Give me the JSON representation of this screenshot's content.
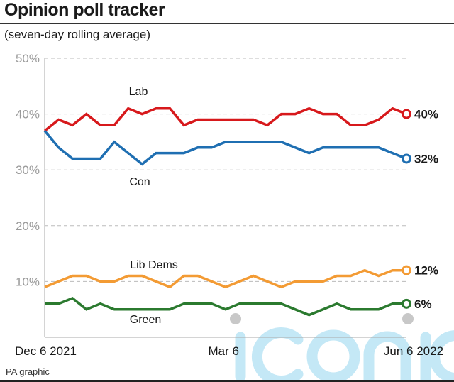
{
  "header": {
    "title": "Opinion poll tracker",
    "subtitle": "(seven-day rolling average)"
  },
  "footer": {
    "source": "PA graphic"
  },
  "watermark": "iconic",
  "chart_data": {
    "type": "line",
    "title": "Opinion poll tracker",
    "subtitle": "(seven-day rolling average)",
    "xlabel": "",
    "ylabel": "",
    "ylim": [
      0,
      50
    ],
    "yticks": [
      "50%",
      "40%",
      "30%",
      "20%",
      "10%"
    ],
    "ytick_values": [
      50,
      40,
      30,
      20,
      10
    ],
    "xticks": [
      "Dec 6 2021",
      "Mar 6",
      "Jun 6 2022"
    ],
    "xtick_dates": [
      "2021-12-06",
      "2022-03-06",
      "2022-06-06"
    ],
    "xlim": [
      "2021-12-06",
      "2022-06-06"
    ],
    "grid": "horizontal dashed",
    "x": [
      "2021-12-06",
      "2021-12-13",
      "2021-12-20",
      "2021-12-27",
      "2022-01-03",
      "2022-01-10",
      "2022-01-17",
      "2022-01-24",
      "2022-01-31",
      "2022-02-07",
      "2022-02-14",
      "2022-02-21",
      "2022-02-28",
      "2022-03-07",
      "2022-03-14",
      "2022-03-21",
      "2022-03-28",
      "2022-04-04",
      "2022-04-11",
      "2022-04-18",
      "2022-04-25",
      "2022-05-02",
      "2022-05-09",
      "2022-05-16",
      "2022-05-23",
      "2022-05-30",
      "2022-06-06"
    ],
    "series": [
      {
        "name": "Lab",
        "color": "#d7191c",
        "end_label": "40%",
        "values": [
          37,
          39,
          38,
          40,
          38,
          38,
          41,
          40,
          41,
          41,
          38,
          39,
          39,
          39,
          39,
          39,
          38,
          40,
          40,
          41,
          40,
          40,
          38,
          38,
          39,
          41,
          40
        ]
      },
      {
        "name": "Con",
        "color": "#1f6fb2",
        "end_label": "32%",
        "values": [
          37,
          34,
          32,
          32,
          32,
          35,
          33,
          31,
          33,
          33,
          33,
          34,
          34,
          35,
          35,
          35,
          35,
          35,
          34,
          33,
          34,
          34,
          34,
          34,
          34,
          33,
          32
        ]
      },
      {
        "name": "Lib Dems",
        "color": "#f39b34",
        "end_label": "12%",
        "values": [
          9,
          10,
          11,
          11,
          10,
          10,
          11,
          11,
          10,
          9,
          11,
          11,
          10,
          9,
          10,
          11,
          10,
          9,
          10,
          10,
          10,
          11,
          11,
          12,
          11,
          12,
          12
        ]
      },
      {
        "name": "Green",
        "color": "#2b7a2f",
        "end_label": "6%",
        "values": [
          6,
          6,
          7,
          5,
          6,
          5,
          5,
          5,
          5,
          5,
          6,
          6,
          6,
          5,
          6,
          6,
          6,
          6,
          5,
          4,
          5,
          6,
          5,
          5,
          5,
          6,
          6
        ]
      }
    ]
  }
}
